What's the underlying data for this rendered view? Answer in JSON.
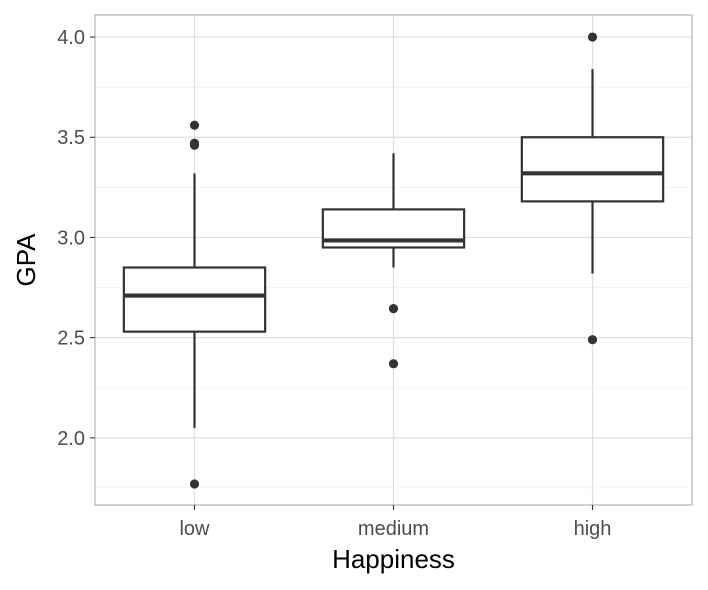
{
  "chart_data": {
    "type": "box",
    "xlabel": "Happiness",
    "ylabel": "GPA",
    "categories": [
      "low",
      "medium",
      "high"
    ],
    "ylim": [
      1.665,
      4.11
    ],
    "y_ticks": [
      2.0,
      2.5,
      3.0,
      3.5,
      4.0
    ],
    "y_tick_labels": [
      "2.0",
      "2.5",
      "3.0",
      "3.5",
      "4.0"
    ],
    "y_minor_ticks": [
      1.75,
      2.25,
      2.75,
      3.25,
      3.75
    ],
    "grid": true,
    "boxes": [
      {
        "category": "low",
        "whisker_low": 2.05,
        "q1": 2.53,
        "median": 2.71,
        "q3": 2.85,
        "whisker_high": 3.32,
        "outliers": [
          1.77,
          3.46,
          3.47,
          3.56
        ]
      },
      {
        "category": "medium",
        "whisker_low": 2.85,
        "q1": 2.95,
        "median": 2.985,
        "q3": 3.14,
        "whisker_high": 3.42,
        "outliers": [
          2.37,
          2.645
        ]
      },
      {
        "category": "high",
        "whisker_low": 2.82,
        "q1": 3.18,
        "median": 3.32,
        "q3": 3.5,
        "whisker_high": 3.84,
        "outliers": [
          2.49,
          4.0
        ]
      }
    ],
    "colors": {
      "box_stroke": "#333333",
      "grid": "#ebebeb",
      "panel_border": "#b3b3b3",
      "point": "#333333"
    }
  }
}
